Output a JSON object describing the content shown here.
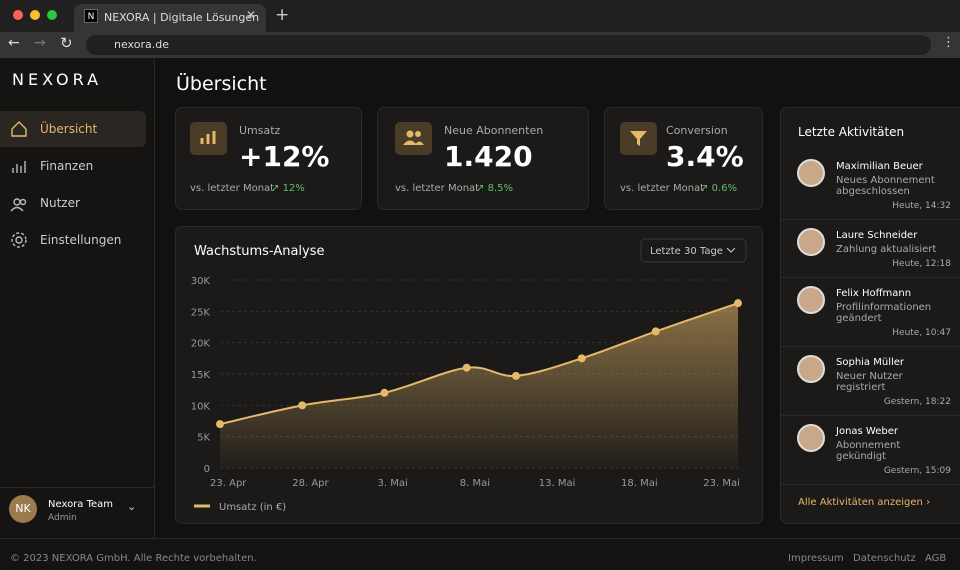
{
  "browser": {
    "tab_title": "NEXORA | Digitale Lösungen",
    "url": "nexora.de"
  },
  "sidebar": {
    "brand": "NEXORA",
    "nav": [
      "Übersicht",
      "Finanzen",
      "Nutzer",
      "Einstellungen"
    ],
    "user": {
      "initials": "NK",
      "name": "Nexora Team",
      "role": "Admin"
    }
  },
  "header": {
    "title": "Übersicht"
  },
  "kpis": [
    {
      "label": "Umsatz",
      "value": "+12%",
      "compare": "vs. letzter Monat",
      "change": "12%"
    },
    {
      "label": "Neue Abonnenten",
      "value": "1.420",
      "compare": "vs. letzter Monat",
      "change": "8.5%"
    },
    {
      "label": "Conversion",
      "value": "3.4%",
      "compare": "vs. letzter Monat",
      "change": "0.6%"
    }
  ],
  "chart_data": {
    "type": "line",
    "title": "Wachstums-Analyse",
    "range_selector": "Letzte 30 Tage",
    "x": [
      -0.5,
      4.5,
      9.5,
      14.5,
      17.5,
      21.5,
      26,
      31
    ],
    "xlim": [
      -0.5,
      31
    ],
    "xticks": [
      {
        "value": 0,
        "label": "23. Apr"
      },
      {
        "value": 5,
        "label": "28. Apr"
      },
      {
        "value": 10,
        "label": "3. Mai"
      },
      {
        "value": 15,
        "label": "8. Mai"
      },
      {
        "value": 20,
        "label": "13. Mai"
      },
      {
        "value": 25,
        "label": "18. Mai"
      },
      {
        "value": 30,
        "label": "23. Mai"
      }
    ],
    "ylim": [
      0,
      30000
    ],
    "yticks": [
      0,
      {
        "value": 5000,
        "label": "5K"
      },
      {
        "value": 10000,
        "label": "10K"
      },
      {
        "value": 15000,
        "label": "15K"
      },
      {
        "value": 20000,
        "label": "20K"
      },
      {
        "value": 25000,
        "label": "25K"
      },
      {
        "value": 30000,
        "label": "30K"
      }
    ],
    "grid": true,
    "series": [
      {
        "name": "Umsatz (in €)",
        "color": "#e6b86a",
        "values": [
          7000,
          10000,
          12000,
          16000,
          14700,
          17500,
          21800,
          26300
        ]
      }
    ]
  },
  "activity": {
    "title": "Letzte Aktivitäten",
    "items": [
      {
        "name": "Maximilian Beuer",
        "action": "Neues Abonnement abgeschlossen",
        "time": "Heute, 14:32"
      },
      {
        "name": "Laure Schneider",
        "action": "Zahlung aktualisiert",
        "time": "Heute, 12:18"
      },
      {
        "name": "Felix Hoffmann",
        "action": "Profilinformationen geändert",
        "time": "Heute, 10:47"
      },
      {
        "name": "Sophia Müller",
        "action": "Neuer Nutzer registriert",
        "time": "Gestern, 18:22"
      },
      {
        "name": "Jonas Weber",
        "action": "Abonnement gekündigt",
        "time": "Gestern, 15:09"
      }
    ],
    "link": "Alle Aktivitäten anzeigen"
  },
  "footer": {
    "copyright": "© 2023 NEXORA GmbH. Alle Rechte vorbehalten.",
    "links": [
      "Impressum",
      "Datenschutz",
      "AGB"
    ]
  }
}
